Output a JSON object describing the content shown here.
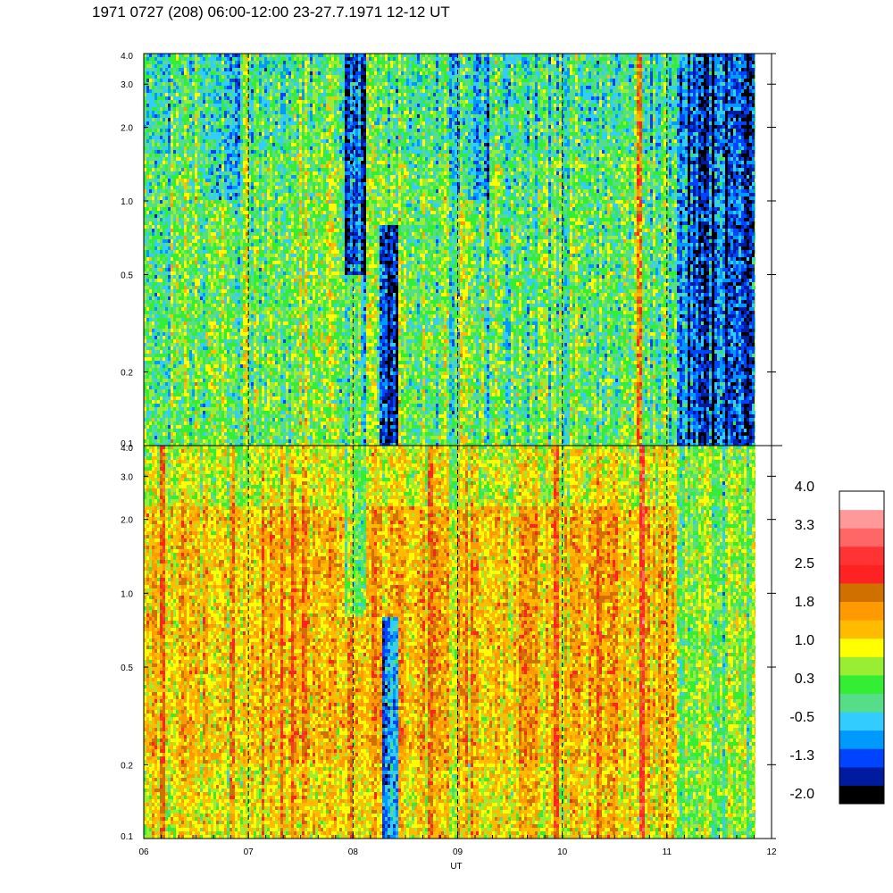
{
  "title": "1971 0727 (208) 06:00-12:00 23-27.7.1971  12-12 UT",
  "chart_data": {
    "type": "heatmap",
    "xlabel": "UT",
    "x_ticks": [
      "06",
      "07",
      "08",
      "09",
      "10",
      "11",
      "12"
    ],
    "x_range": [
      6,
      12
    ],
    "x_data_end": 11.83,
    "dashed_x": [
      7,
      8,
      9,
      10,
      11
    ],
    "panels": [
      {
        "name": "upper",
        "y_ticks": [
          {
            "value": 0.1,
            "label": "0.1"
          },
          {
            "value": 0.2,
            "label": "0.2"
          },
          {
            "value": 0.5,
            "label": "0.5"
          },
          {
            "value": 1.0,
            "label": "1.0"
          },
          {
            "value": 2.0,
            "label": "2.0"
          },
          {
            "value": 3.0,
            "label": "3.0"
          },
          {
            "value": 4.0,
            "label": "4.0"
          }
        ],
        "y_range": [
          0.1,
          4.0
        ],
        "y_scale": "log",
        "base_level": 0.2,
        "spread": 0.7,
        "features": [
          {
            "x": [
              8.25,
              8.42
            ],
            "level": -1.7,
            "y_max": 0.8
          },
          {
            "x": [
              7.9,
              8.1
            ],
            "level": -1.2,
            "y_min": 0.5
          },
          {
            "x": [
              11.07,
              11.83
            ],
            "level": -1.4
          },
          {
            "x": [
              8.95,
              9.3
            ],
            "level": -0.6,
            "y_min": 1.0
          },
          {
            "x": [
              6.6,
              6.9
            ],
            "level": -0.6,
            "y_min": 1.0
          },
          {
            "x": [
              10.7,
              10.76
            ],
            "level": 1.9
          }
        ]
      },
      {
        "name": "lower",
        "y_ticks": [
          {
            "value": 0.1,
            "label": "0.1"
          },
          {
            "value": 0.2,
            "label": "0.2"
          },
          {
            "value": 0.5,
            "label": "0.5"
          },
          {
            "value": 1.0,
            "label": "1.0"
          },
          {
            "value": 2.0,
            "label": "2.0"
          },
          {
            "value": 3.0,
            "label": "3.0"
          },
          {
            "value": 4.0,
            "label": "4.0"
          }
        ],
        "y_range": [
          0.1,
          4.0
        ],
        "y_scale": "log",
        "base_level": 1.5,
        "spread": 0.6,
        "features": [
          {
            "x": [
              8.27,
              8.42
            ],
            "level": -0.9,
            "y_max": 0.8
          },
          {
            "x": [
              7.92,
              8.1
            ],
            "level": 0.3,
            "y_min": 0.8
          },
          {
            "x": [
              11.07,
              11.83
            ],
            "level": 0.4
          },
          {
            "x": [
              10.72,
              10.77
            ],
            "level": 2.7
          },
          {
            "x": [
              6.15,
              6.2
            ],
            "level": 2.4
          },
          {
            "x": [
              8.7,
              8.74
            ],
            "level": 2.4
          },
          {
            "x": [
              9.9,
              9.95
            ],
            "level": 2.3
          }
        ]
      }
    ],
    "colorbar": {
      "labels": [
        "4.0",
        "3.3",
        "2.5",
        "1.8",
        "1.0",
        "0.3",
        "-0.5",
        "-1.3",
        "-2.0"
      ],
      "range": [
        -2.3,
        4.3
      ],
      "colors": [
        "#000000",
        "#001aa0",
        "#0044ff",
        "#0099ff",
        "#33ccff",
        "#55dd88",
        "#33ee33",
        "#99ee33",
        "#ffff00",
        "#ffbb00",
        "#ff9900",
        "#d07000",
        "#ff2222",
        "#ff3333",
        "#ff6666",
        "#ff9999",
        "#ffffff"
      ]
    }
  }
}
